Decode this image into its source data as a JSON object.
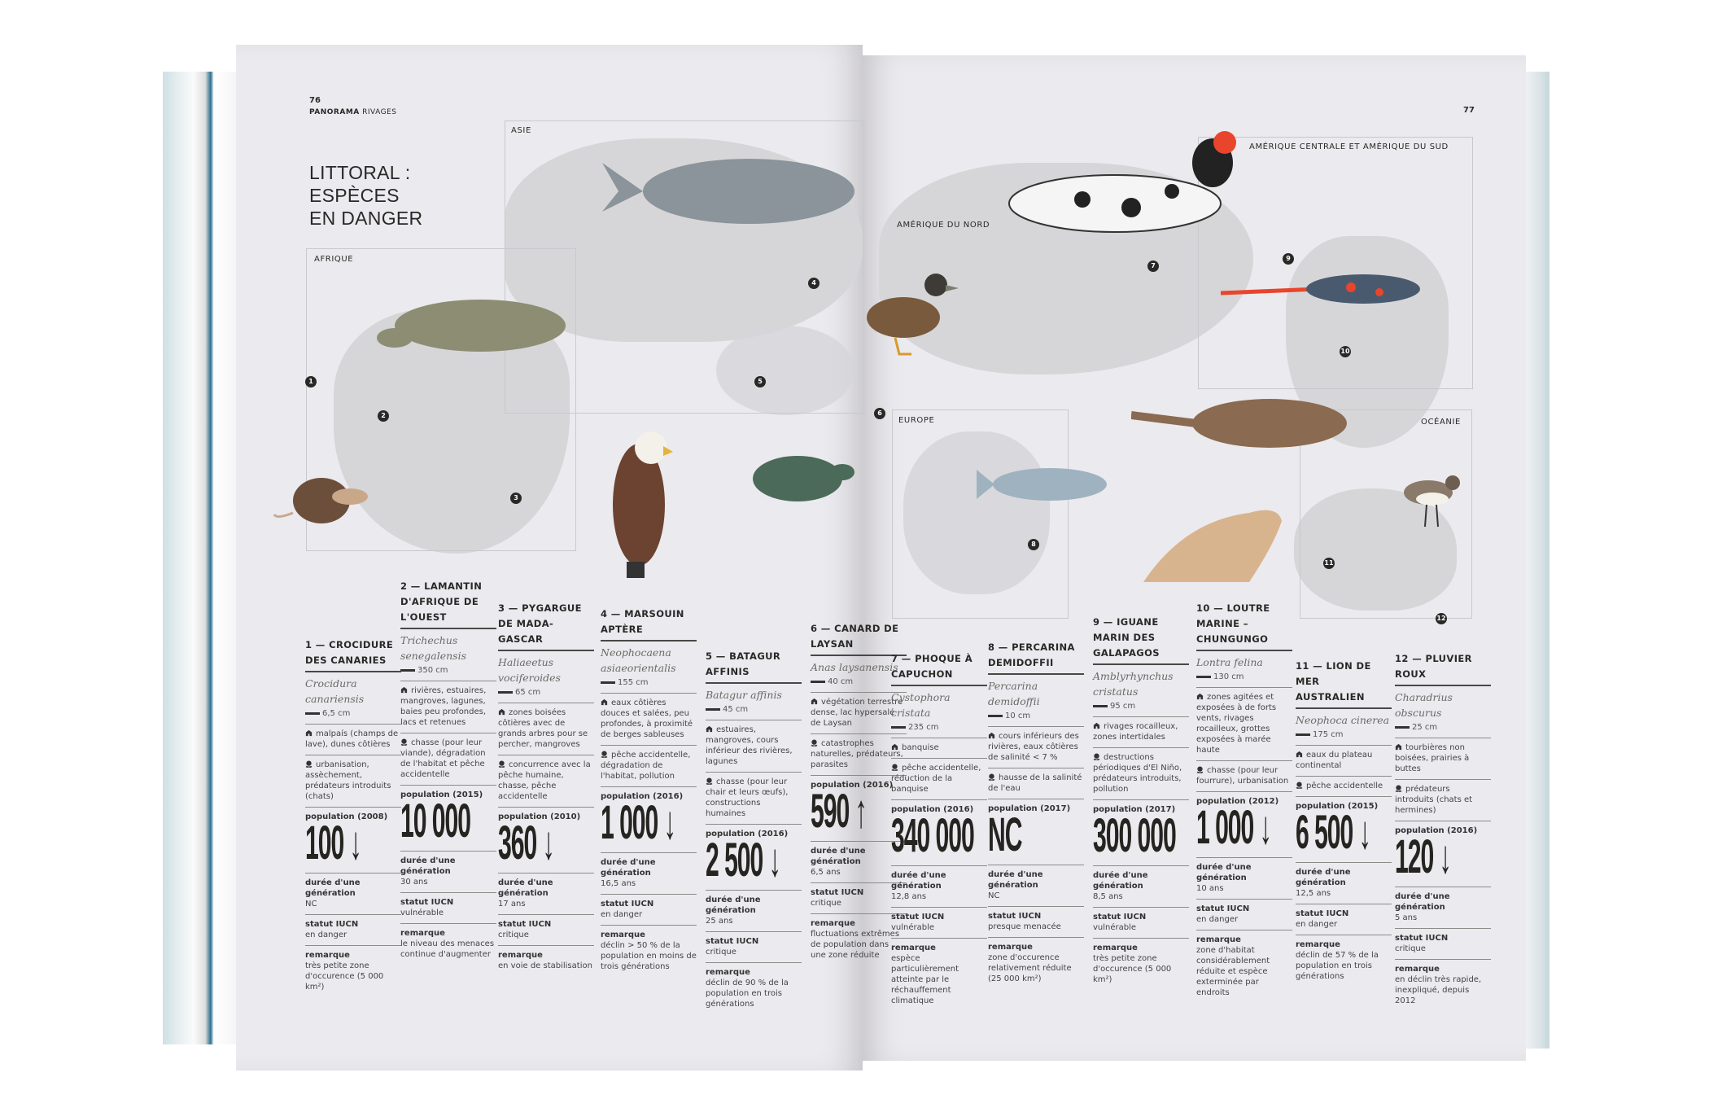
{
  "left_page": {
    "page_number": "76",
    "section": "PANORAMA",
    "subsection": "RIVAGES",
    "title_lines": [
      "LITTORAL :",
      "ESPÈCES",
      "EN DANGER"
    ]
  },
  "right_page": {
    "page_number": "77"
  },
  "regions": {
    "afrique": "AFRIQUE",
    "asie": "ASIE",
    "amerique_nord": "AMÉRIQUE DU NORD",
    "amerique_sud": "AMÉRIQUE CENTRALE ET AMÉRIQUE DU SUD",
    "europe": "EUROPE",
    "oceanie": "OCÉANIE"
  },
  "markers": [
    "1",
    "2",
    "3",
    "4",
    "5",
    "6",
    "7",
    "8",
    "9",
    "10",
    "11",
    "12"
  ],
  "labels": {
    "generation": "durée d'une génération",
    "statut": "statut IUCN",
    "remarque": "remarque"
  },
  "icons": {
    "size": "ruler-icon",
    "habitat": "habitat-icon",
    "threat": "skull-icon",
    "trend_down": "arrow-down-icon",
    "trend_up": "arrow-up-icon"
  },
  "species": [
    {
      "title": "1 — CROCIDURE DES CANARIES",
      "latin": "Crocidura canariensis",
      "size": "6,5 cm",
      "habitat": "malpaís (champs de lave), dunes côtières",
      "threats": "urbanisation, assèchement, prédateurs introduits (chats)",
      "population_label": "population (2008)",
      "population": "100",
      "trend": "down",
      "generation": "NC",
      "statut": "en danger",
      "remarque": "très petite zone d'occurence (5 000 km²)"
    },
    {
      "title": "2 — LAMANTIN D'AFRIQUE DE L'OUEST",
      "latin": "Trichechus senegalensis",
      "size": "350 cm",
      "habitat": "rivières, estuaires, mangroves, lagunes, baies peu profondes, lacs et retenues",
      "threats": "chasse (pour leur viande), dégradation de l'habitat et pêche accidentelle",
      "population_label": "population (2015)",
      "population": "10 000",
      "trend": "",
      "generation": "30 ans",
      "statut": "vulnérable",
      "remarque": "le niveau des menaces continue d'augmenter"
    },
    {
      "title": "3 — PYGARGUE DE MADA-GASCAR",
      "latin": "Haliaeetus vociferoides",
      "size": "65 cm",
      "habitat": "zones boisées côtières avec de grands arbres pour se percher, mangroves",
      "threats": "concurrence avec la pêche humaine, chasse, pêche accidentelle",
      "population_label": "population (2010)",
      "population": "360",
      "trend": "down",
      "generation": "17 ans",
      "statut": "critique",
      "remarque": "en voie de stabilisation"
    },
    {
      "title": "4 — MARSOUIN APTÈRE",
      "latin": "Neophocaena asiaeorientalis",
      "size": "155 cm",
      "habitat": "eaux côtières douces et salées, peu profondes, à proximité de berges sableuses",
      "threats": "pêche accidentelle, dégradation de l'habitat, pollution",
      "population_label": "population (2016)",
      "population": "1 000",
      "trend": "down",
      "generation": "16,5 ans",
      "statut": "en danger",
      "remarque": "déclin > 50 % de la population en moins de trois générations"
    },
    {
      "title": "5 — BATAGUR AFFINIS",
      "latin": "Batagur affinis",
      "size": "45 cm",
      "habitat": "estuaires, mangroves, cours inférieur des rivières, lagunes",
      "threats": "chasse (pour leur chair et leurs œufs), constructions humaines",
      "population_label": "population (2016)",
      "population": "2 500",
      "trend": "down",
      "generation": "25 ans",
      "statut": "critique",
      "remarque": "déclin de 90 % de la population en trois générations"
    },
    {
      "title": "6 — CANARD DE LAYSAN",
      "latin": "Anas laysanensis",
      "size": "40 cm",
      "habitat": "végétation terrestre dense, lac hypersalé de Laysan",
      "threats": "catastrophes naturelles, prédateurs, parasites",
      "population_label": "population (2016)",
      "population": "590",
      "trend": "up",
      "generation": "6,5 ans",
      "statut": "critique",
      "remarque": "fluctuations extrêmes de population dans une zone réduite"
    },
    {
      "title": "7 — PHOQUE À CAPUCHON",
      "latin": "Cystophora cristata",
      "size": "235 cm",
      "habitat": "banquise",
      "threats": "pêche accidentelle, réduction de la banquise",
      "population_label": "population (2016)",
      "population": "340 000",
      "trend": "",
      "generation": "12,8 ans",
      "statut": "vulnérable",
      "remarque": "espèce particulièrement atteinte par le réchauffement climatique"
    },
    {
      "title": "8 — PERCARINA DEMIDOFFII",
      "latin": "Percarina demidoffii",
      "size": "10 cm",
      "habitat": "cours inférieurs des rivières, eaux côtières de salinité < 7 %",
      "threats": "hausse de la salinité de l'eau",
      "population_label": "population (2017)",
      "population": "NC",
      "trend": "",
      "generation": "NC",
      "statut": "presque menacée",
      "remarque": "zone d'occurence relativement réduite (25 000 km²)"
    },
    {
      "title": "9 — IGUANE MARIN DES GALAPAGOS",
      "latin": "Amblyrhynchus cristatus",
      "size": "95 cm",
      "habitat": "rivages rocailleux, zones intertidales",
      "threats": "destructions périodiques d'El Niño, prédateurs introduits, pollution",
      "population_label": "population (2017)",
      "population": "300 000",
      "trend": "",
      "generation": "8,5 ans",
      "statut": "vulnérable",
      "remarque": "très petite zone d'occurence (5 000 km²)"
    },
    {
      "title": "10 — LOUTRE MARINE – CHUNGUNGO",
      "latin": "Lontra felina",
      "size": "130 cm",
      "habitat": "zones agitées et exposées à de forts vents, rivages rocailleux, grottes exposées à marée haute",
      "threats": "chasse (pour leur fourrure), urbanisation",
      "population_label": "population (2012)",
      "population": "1 000",
      "trend": "down",
      "generation": "10 ans",
      "statut": "en danger",
      "remarque": "zone d'habitat considérablement réduite et espèce exterminée par endroits"
    },
    {
      "title": "11 — LION DE MER AUSTRALIEN",
      "latin": "Neophoca cinerea",
      "size": "175 cm",
      "habitat": "eaux du plateau continental",
      "threats": "pêche accidentelle",
      "population_label": "population (2015)",
      "population": "6 500",
      "trend": "down",
      "generation": "12,5 ans",
      "statut": "en danger",
      "remarque": "déclin de 57 % de la population en trois générations"
    },
    {
      "title": "12 — PLUVIER ROUX",
      "latin": "Charadrius obscurus",
      "size": "25 cm",
      "habitat": "tourbières non boisées, prairies à buttes",
      "threats": "prédateurs introduits (chats et hermines)",
      "population_label": "population (2016)",
      "population": "120",
      "trend": "down",
      "generation": "5 ans",
      "statut": "critique",
      "remarque": "en déclin très rapide, inexpliqué, depuis 2012"
    }
  ],
  "colors": {
    "page": "#ebeaee",
    "map": "#d6d6d9",
    "ink": "#2a2826",
    "accent_red": "#e8452c"
  }
}
